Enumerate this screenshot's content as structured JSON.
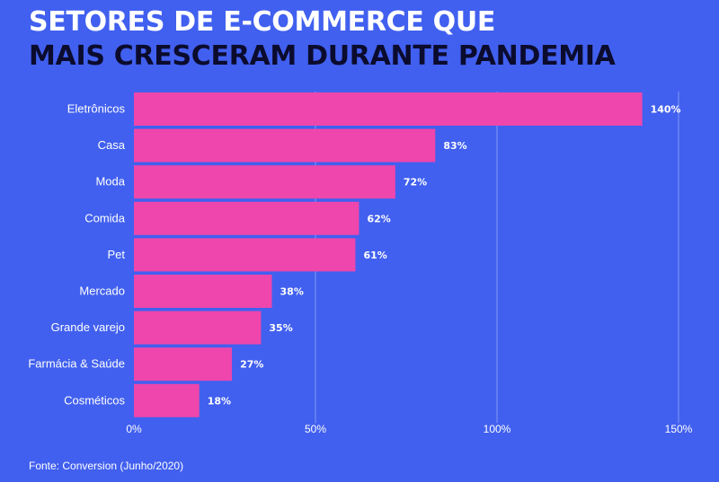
{
  "title": {
    "line1": "SETORES DE E-COMMERCE QUE",
    "line2": "MAIS CRESCERAM DURANTE PANDEMIA"
  },
  "source": "Fonte: Conversion (Junho/2020)",
  "colors": {
    "background": "#4160ef",
    "bar": "#ee46ac",
    "title_dark": "#0b0b2e",
    "text": "#ffffff"
  },
  "chart_data": {
    "type": "bar",
    "orientation": "horizontal",
    "categories": [
      "Eletrônicos",
      "Casa",
      "Moda",
      "Comida",
      "Pet",
      "Mercado",
      "Grande varejo",
      "Farmácia & Saúde",
      "Cosméticos"
    ],
    "values": [
      140,
      83,
      72,
      62,
      61,
      38,
      35,
      27,
      18
    ],
    "value_labels": [
      "140%",
      "83%",
      "72%",
      "62%",
      "61%",
      "38%",
      "35%",
      "27%",
      "18%"
    ],
    "xlim": [
      0,
      150
    ],
    "x_ticks": [
      0,
      50,
      100,
      150
    ],
    "x_tick_labels": [
      "0%",
      "50%",
      "100%",
      "150%"
    ],
    "grid": true
  }
}
